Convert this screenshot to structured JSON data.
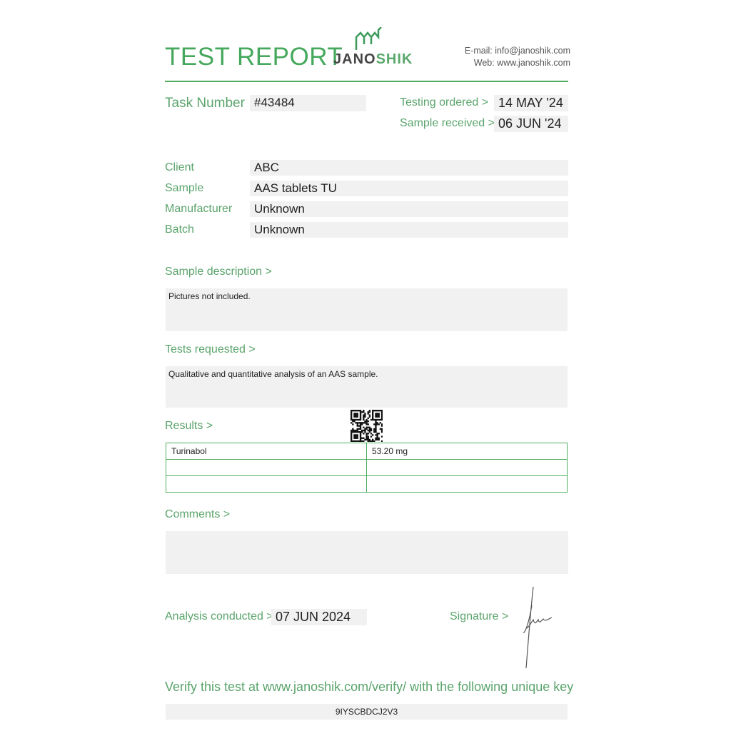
{
  "header": {
    "title": "TEST REPORT",
    "logo_text": "JANOSHIK",
    "email": "E-mail: info@janoshik.com",
    "web": "Web: www.janoshik.com"
  },
  "task": {
    "label": "Task Number",
    "value": "#43484"
  },
  "dates": {
    "ordered_label": "Testing ordered  >",
    "ordered_value": "14 MAY '24",
    "received_label": "Sample received >",
    "received_value": "06 JUN '24"
  },
  "fields": [
    {
      "label": "Client",
      "value": "ABC"
    },
    {
      "label": "Sample",
      "value": "AAS tablets TU"
    },
    {
      "label": "Manufacturer",
      "value": "Unknown"
    },
    {
      "label": "Batch",
      "value": "Unknown"
    }
  ],
  "sample_description": {
    "label": "Sample description >",
    "value": "Pictures not included."
  },
  "tests_requested": {
    "label": "Tests requested >",
    "value": "Qualitative and quantitative analysis of an AAS sample."
  },
  "results": {
    "label": "Results >",
    "rows": [
      [
        "Turinabol",
        "53.20 mg"
      ],
      [
        "",
        ""
      ],
      [
        "",
        ""
      ]
    ]
  },
  "comments": {
    "label": "Comments >",
    "value": ""
  },
  "analysis": {
    "label": "Analysis conducted >",
    "value": "07 JUN 2024"
  },
  "signature": {
    "label": "Signature >"
  },
  "verify": {
    "text": "Verify this test at www.janoshik.com/verify/ with the following unique key",
    "key": "9IYSCBDCJ2V3"
  },
  "colors": {
    "accent": "#4fae60",
    "field_bg": "#f1f1f1"
  }
}
